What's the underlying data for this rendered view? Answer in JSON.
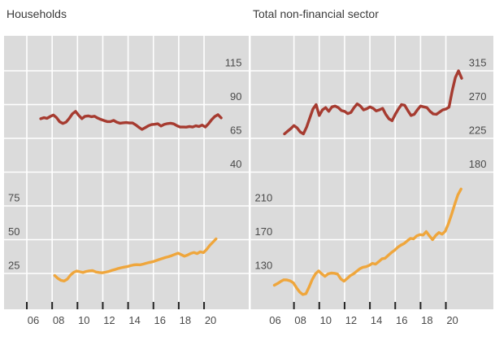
{
  "colors": {
    "red": "#a63b30",
    "orange": "#efa63c",
    "plot_bg": "#dbdbdb",
    "grid": "#ffffff",
    "tick": "#222222",
    "axis_label": "#4a4a4a",
    "title": "#3b3b3b",
    "page_bg": "#ffffff"
  },
  "chart_data": [
    {
      "type": "line",
      "title": "Households",
      "grid": true,
      "legend": "none",
      "x_axis": {
        "labels": [
          "06",
          "08",
          "10",
          "12",
          "14",
          "16",
          "18",
          "20"
        ],
        "years": [
          2006,
          2008,
          2010,
          2012,
          2014,
          2016,
          2018,
          2020
        ]
      },
      "right_axis": {
        "ticks": [
          115,
          90,
          65,
          40
        ],
        "applies_to": "red-series"
      },
      "left_axis": {
        "ticks": [
          75,
          50,
          25
        ],
        "applies_to": "orange-series"
      },
      "series": [
        {
          "name": "households-red",
          "color": "red",
          "axis": "right",
          "points": [
            [
              2007.1,
              79.5
            ],
            [
              2007.35,
              80.3
            ],
            [
              2007.6,
              79.8
            ],
            [
              2007.85,
              81.2
            ],
            [
              2008.1,
              82.3
            ],
            [
              2008.35,
              80.3
            ],
            [
              2008.6,
              77.2
            ],
            [
              2008.85,
              76.0
            ],
            [
              2009.1,
              77.0
            ],
            [
              2009.35,
              79.8
            ],
            [
              2009.6,
              83.2
            ],
            [
              2009.85,
              85.0
            ],
            [
              2010.1,
              82.0
            ],
            [
              2010.35,
              79.6
            ],
            [
              2010.6,
              81.3
            ],
            [
              2010.85,
              81.6
            ],
            [
              2011.1,
              81.0
            ],
            [
              2011.35,
              81.4
            ],
            [
              2011.6,
              80.0
            ],
            [
              2011.85,
              79.0
            ],
            [
              2012.1,
              78.2
            ],
            [
              2012.35,
              77.4
            ],
            [
              2012.6,
              77.4
            ],
            [
              2012.85,
              78.3
            ],
            [
              2013.1,
              77.0
            ],
            [
              2013.35,
              76.2
            ],
            [
              2013.6,
              76.5
            ],
            [
              2013.85,
              76.7
            ],
            [
              2014.1,
              76.4
            ],
            [
              2014.35,
              76.4
            ],
            [
              2014.6,
              75.0
            ],
            [
              2014.85,
              73.2
            ],
            [
              2015.1,
              71.6
            ],
            [
              2015.35,
              72.9
            ],
            [
              2015.6,
              74.3
            ],
            [
              2015.85,
              75.2
            ],
            [
              2016.1,
              75.4
            ],
            [
              2016.35,
              75.8
            ],
            [
              2016.6,
              74.1
            ],
            [
              2016.85,
              75.3
            ],
            [
              2017.1,
              75.9
            ],
            [
              2017.35,
              76.2
            ],
            [
              2017.6,
              75.7
            ],
            [
              2017.85,
              74.4
            ],
            [
              2018.1,
              73.4
            ],
            [
              2018.35,
              73.4
            ],
            [
              2018.6,
              73.3
            ],
            [
              2018.85,
              73.8
            ],
            [
              2019.1,
              73.4
            ],
            [
              2019.35,
              74.3
            ],
            [
              2019.6,
              73.8
            ],
            [
              2019.85,
              74.8
            ],
            [
              2020.1,
              73.4
            ],
            [
              2020.35,
              75.8
            ],
            [
              2020.6,
              78.8
            ],
            [
              2020.85,
              81.2
            ],
            [
              2021.1,
              82.5
            ],
            [
              2021.35,
              80.2
            ]
          ]
        },
        {
          "name": "households-orange",
          "color": "orange",
          "axis": "left",
          "points": [
            [
              2008.2,
              23.5
            ],
            [
              2008.45,
              21.3
            ],
            [
              2008.7,
              19.9
            ],
            [
              2008.95,
              19.4
            ],
            [
              2009.2,
              20.8
            ],
            [
              2009.45,
              23.8
            ],
            [
              2009.7,
              25.8
            ],
            [
              2009.95,
              26.8
            ],
            [
              2010.2,
              26.2
            ],
            [
              2010.45,
              25.7
            ],
            [
              2010.7,
              26.5
            ],
            [
              2010.95,
              26.9
            ],
            [
              2011.2,
              27.1
            ],
            [
              2011.45,
              26.1
            ],
            [
              2011.7,
              25.7
            ],
            [
              2011.95,
              25.5
            ],
            [
              2012.2,
              25.9
            ],
            [
              2012.45,
              26.4
            ],
            [
              2012.7,
              27.2
            ],
            [
              2012.95,
              27.9
            ],
            [
              2013.2,
              28.6
            ],
            [
              2013.45,
              29.2
            ],
            [
              2013.7,
              29.7
            ],
            [
              2013.95,
              30.1
            ],
            [
              2014.2,
              30.8
            ],
            [
              2014.45,
              31.3
            ],
            [
              2014.7,
              31.5
            ],
            [
              2014.95,
              31.4
            ],
            [
              2015.2,
              31.9
            ],
            [
              2015.45,
              32.6
            ],
            [
              2015.7,
              33.2
            ],
            [
              2015.95,
              33.7
            ],
            [
              2016.2,
              34.5
            ],
            [
              2016.45,
              35.3
            ],
            [
              2016.7,
              36.1
            ],
            [
              2016.95,
              36.8
            ],
            [
              2017.2,
              37.4
            ],
            [
              2017.45,
              38.2
            ],
            [
              2017.7,
              39.1
            ],
            [
              2017.95,
              40.0
            ],
            [
              2018.2,
              38.9
            ],
            [
              2018.45,
              37.8
            ],
            [
              2018.7,
              38.6
            ],
            [
              2018.95,
              39.8
            ],
            [
              2019.2,
              40.5
            ],
            [
              2019.45,
              39.7
            ],
            [
              2019.7,
              41.0
            ],
            [
              2019.95,
              40.4
            ],
            [
              2020.2,
              42.8
            ],
            [
              2020.45,
              45.8
            ],
            [
              2020.7,
              48.2
            ],
            [
              2020.95,
              50.6
            ]
          ]
        }
      ]
    },
    {
      "type": "line",
      "title": "Total non-financial sector",
      "grid": true,
      "legend": "none",
      "x_axis": {
        "labels": [
          "06",
          "08",
          "10",
          "12",
          "14",
          "16",
          "18",
          "20"
        ],
        "years": [
          2006,
          2008,
          2010,
          2012,
          2014,
          2016,
          2018,
          2020
        ]
      },
      "right_axis": {
        "ticks": [
          315,
          270,
          225,
          180
        ],
        "applies_to": "red-series"
      },
      "left_axis": {
        "ticks": [
          210,
          170,
          130
        ],
        "applies_to": "orange-series"
      },
      "series": [
        {
          "name": "total-red",
          "color": "red",
          "axis": "right",
          "points": [
            [
              2007.25,
              231
            ],
            [
              2007.5,
              234.5
            ],
            [
              2007.75,
              238
            ],
            [
              2008.0,
              242
            ],
            [
              2008.25,
              239
            ],
            [
              2008.5,
              233.5
            ],
            [
              2008.75,
              231
            ],
            [
              2009.0,
              240
            ],
            [
              2009.25,
              252
            ],
            [
              2009.5,
              264
            ],
            [
              2009.75,
              270
            ],
            [
              2010.0,
              255.5
            ],
            [
              2010.25,
              263
            ],
            [
              2010.5,
              266
            ],
            [
              2010.75,
              261
            ],
            [
              2011.0,
              267
            ],
            [
              2011.25,
              268
            ],
            [
              2011.5,
              266
            ],
            [
              2011.75,
              262
            ],
            [
              2012.0,
              261
            ],
            [
              2012.25,
              258
            ],
            [
              2012.5,
              259.5
            ],
            [
              2012.75,
              266
            ],
            [
              2013.0,
              271
            ],
            [
              2013.25,
              268
            ],
            [
              2013.5,
              263
            ],
            [
              2013.75,
              264.5
            ],
            [
              2014.0,
              267
            ],
            [
              2014.25,
              265
            ],
            [
              2014.5,
              261.5
            ],
            [
              2014.75,
              263
            ],
            [
              2015.0,
              265
            ],
            [
              2015.25,
              257
            ],
            [
              2015.5,
              251
            ],
            [
              2015.75,
              248.5
            ],
            [
              2016.0,
              257
            ],
            [
              2016.25,
              264
            ],
            [
              2016.5,
              270
            ],
            [
              2016.75,
              269
            ],
            [
              2017.0,
              262
            ],
            [
              2017.25,
              255.5
            ],
            [
              2017.5,
              257
            ],
            [
              2017.75,
              263
            ],
            [
              2018.0,
              268
            ],
            [
              2018.25,
              267
            ],
            [
              2018.5,
              266
            ],
            [
              2018.75,
              261
            ],
            [
              2019.0,
              257.5
            ],
            [
              2019.25,
              257
            ],
            [
              2019.5,
              260
            ],
            [
              2019.75,
              263
            ],
            [
              2020.0,
              264
            ],
            [
              2020.25,
              266.5
            ],
            [
              2020.5,
              288
            ],
            [
              2020.75,
              306
            ],
            [
              2021.0,
              315
            ],
            [
              2021.25,
              305
            ]
          ]
        },
        {
          "name": "total-orange",
          "color": "orange",
          "axis": "left",
          "points": [
            [
              2006.45,
              116
            ],
            [
              2006.7,
              118
            ],
            [
              2006.95,
              120.5
            ],
            [
              2007.2,
              122.5
            ],
            [
              2007.45,
              122.3
            ],
            [
              2007.7,
              121.2
            ],
            [
              2007.95,
              118.8
            ],
            [
              2008.2,
              113
            ],
            [
              2008.45,
              108
            ],
            [
              2008.7,
              105
            ],
            [
              2008.95,
              106
            ],
            [
              2009.2,
              114
            ],
            [
              2009.45,
              123
            ],
            [
              2009.7,
              129.5
            ],
            [
              2009.95,
              133
            ],
            [
              2010.2,
              129.5
            ],
            [
              2010.45,
              126.5
            ],
            [
              2010.7,
              129.5
            ],
            [
              2010.95,
              130.5
            ],
            [
              2011.2,
              130.2
            ],
            [
              2011.45,
              129.2
            ],
            [
              2011.7,
              123.5
            ],
            [
              2011.95,
              120.8
            ],
            [
              2012.2,
              124
            ],
            [
              2012.45,
              127.5
            ],
            [
              2012.7,
              129.5
            ],
            [
              2012.95,
              132.5
            ],
            [
              2013.2,
              135.5
            ],
            [
              2013.45,
              137.3
            ],
            [
              2013.7,
              138
            ],
            [
              2013.95,
              139.5
            ],
            [
              2014.2,
              142
            ],
            [
              2014.45,
              141
            ],
            [
              2014.7,
              144
            ],
            [
              2014.95,
              147.3
            ],
            [
              2015.2,
              148
            ],
            [
              2015.45,
              151.5
            ],
            [
              2015.7,
              154.8
            ],
            [
              2015.95,
              157.5
            ],
            [
              2016.2,
              161
            ],
            [
              2016.45,
              163.5
            ],
            [
              2016.7,
              165.5
            ],
            [
              2016.95,
              168.5
            ],
            [
              2017.2,
              171.5
            ],
            [
              2017.45,
              171
            ],
            [
              2017.7,
              174.5
            ],
            [
              2017.95,
              176
            ],
            [
              2018.2,
              175.5
            ],
            [
              2018.45,
              179.5
            ],
            [
              2018.7,
              174.5
            ],
            [
              2018.95,
              170
            ],
            [
              2019.2,
              175
            ],
            [
              2019.45,
              178.5
            ],
            [
              2019.7,
              176.5
            ],
            [
              2019.95,
              180
            ],
            [
              2020.2,
              189
            ],
            [
              2020.45,
              200
            ],
            [
              2020.7,
              212
            ],
            [
              2020.95,
              223
            ],
            [
              2021.2,
              230
            ]
          ]
        }
      ]
    }
  ]
}
